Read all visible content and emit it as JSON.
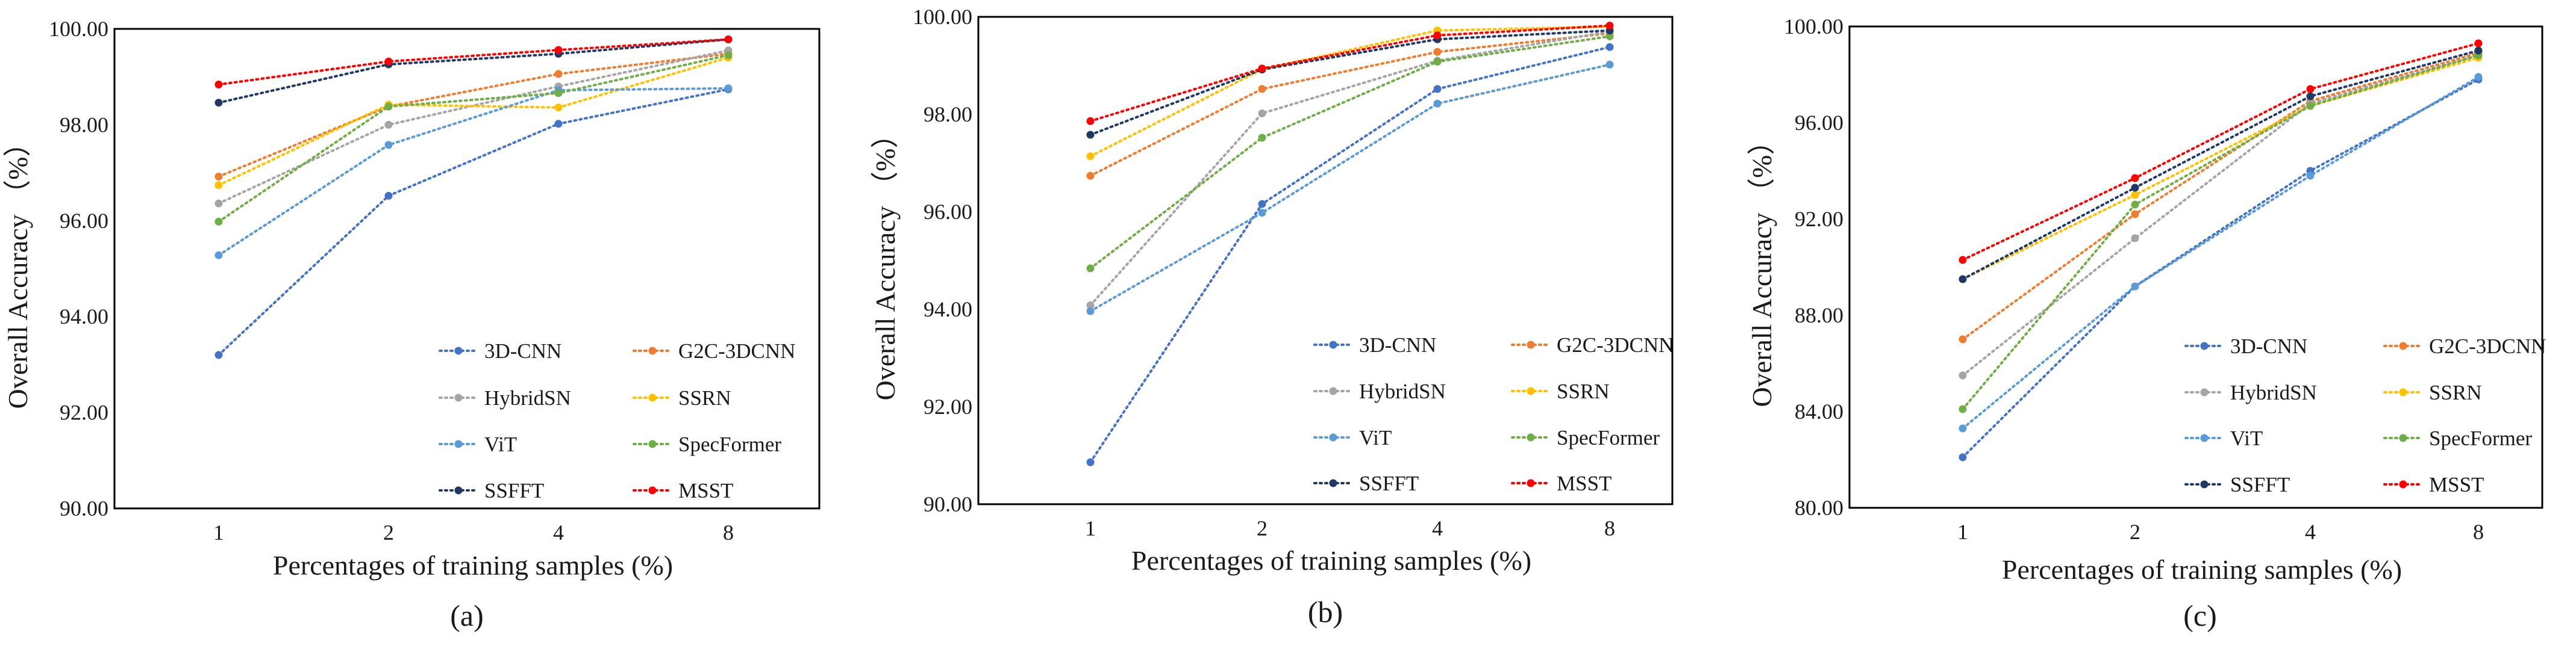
{
  "chart_data": [
    {
      "type": "line",
      "panel_label": "(a)",
      "xlabel": "Percentages of training samples (%)",
      "ylabel": "Overall Accuracy （%）",
      "categories": [
        "1",
        "2",
        "4",
        "8"
      ],
      "ylim": [
        90,
        100
      ],
      "yticks": [
        "90.00",
        "92.00",
        "94.00",
        "96.00",
        "98.00",
        "100.00"
      ],
      "series": [
        {
          "name": "3D-CNN",
          "color": "#4472C4",
          "values": [
            93.2,
            96.52,
            98.02,
            98.74
          ]
        },
        {
          "name": "G2C-3DCNN",
          "color": "#ED7D31",
          "values": [
            96.92,
            98.38,
            99.06,
            99.48
          ]
        },
        {
          "name": "HybridSN",
          "color": "#A5A5A5",
          "values": [
            96.36,
            98.0,
            98.8,
            99.55
          ]
        },
        {
          "name": "SSRN",
          "color": "#FFC000",
          "values": [
            96.74,
            98.42,
            98.36,
            99.4
          ]
        },
        {
          "name": "ViT",
          "color": "#5B9BD5",
          "values": [
            95.28,
            97.58,
            98.72,
            98.76
          ]
        },
        {
          "name": "SpecFormer",
          "color": "#70AD47",
          "values": [
            95.98,
            98.38,
            98.66,
            99.45
          ]
        },
        {
          "name": "SSFFT",
          "color": "#203864",
          "values": [
            98.46,
            99.26,
            99.48,
            99.78
          ]
        },
        {
          "name": "MSST",
          "color": "#FF0000",
          "values": [
            98.84,
            99.32,
            99.56,
            99.78
          ]
        }
      ]
    },
    {
      "type": "line",
      "panel_label": "(b)",
      "xlabel": "Percentages of training samples (%)",
      "ylabel": "Overall Accuracy （%）",
      "categories": [
        "1",
        "2",
        "4",
        "8"
      ],
      "ylim": [
        90,
        100
      ],
      "yticks": [
        "90.00",
        "92.00",
        "94.00",
        "96.00",
        "98.00",
        "100.00"
      ],
      "series": [
        {
          "name": "3D-CNN",
          "color": "#4472C4",
          "values": [
            90.86,
            96.16,
            98.52,
            99.38
          ]
        },
        {
          "name": "G2C-3DCNN",
          "color": "#ED7D31",
          "values": [
            96.74,
            98.52,
            99.28,
            99.66
          ]
        },
        {
          "name": "HybridSN",
          "color": "#A5A5A5",
          "values": [
            94.08,
            98.02,
            99.1,
            99.7
          ]
        },
        {
          "name": "SSRN",
          "color": "#FFC000",
          "values": [
            97.14,
            98.92,
            99.72,
            99.8
          ]
        },
        {
          "name": "ViT",
          "color": "#5B9BD5",
          "values": [
            93.96,
            95.98,
            98.22,
            99.02
          ]
        },
        {
          "name": "SpecFormer",
          "color": "#70AD47",
          "values": [
            94.84,
            97.52,
            99.08,
            99.6
          ]
        },
        {
          "name": "SSFFT",
          "color": "#203864",
          "values": [
            97.58,
            98.92,
            99.54,
            99.72
          ]
        },
        {
          "name": "MSST",
          "color": "#FF0000",
          "values": [
            97.86,
            98.94,
            99.62,
            99.82
          ]
        }
      ]
    },
    {
      "type": "line",
      "panel_label": "(c)",
      "xlabel": "Percentages of training samples (%)",
      "ylabel": "Overall Accuracy （%）",
      "categories": [
        "1",
        "2",
        "4",
        "8"
      ],
      "ylim": [
        80,
        100
      ],
      "yticks": [
        "80.00",
        "84.00",
        "88.00",
        "92.00",
        "96.00",
        "100.00"
      ],
      "series": [
        {
          "name": "3D-CNN",
          "color": "#4472C4",
          "values": [
            82.1,
            89.2,
            94.0,
            97.8
          ]
        },
        {
          "name": "G2C-3DCNN",
          "color": "#ED7D31",
          "values": [
            87.0,
            92.2,
            96.9,
            98.9
          ]
        },
        {
          "name": "HybridSN",
          "color": "#A5A5A5",
          "values": [
            85.5,
            91.2,
            96.8,
            98.8
          ]
        },
        {
          "name": "SSRN",
          "color": "#FFC000",
          "values": [
            89.5,
            93.0,
            96.7,
            98.7
          ]
        },
        {
          "name": "ViT",
          "color": "#5B9BD5",
          "values": [
            83.3,
            89.2,
            93.8,
            97.9
          ]
        },
        {
          "name": "SpecFormer",
          "color": "#70AD47",
          "values": [
            84.1,
            92.6,
            96.7,
            98.8
          ]
        },
        {
          "name": "SSFFT",
          "color": "#203864",
          "values": [
            89.5,
            93.3,
            97.1,
            99.0
          ]
        },
        {
          "name": "MSST",
          "color": "#FF0000",
          "values": [
            90.3,
            93.7,
            97.4,
            99.3
          ]
        }
      ]
    }
  ]
}
